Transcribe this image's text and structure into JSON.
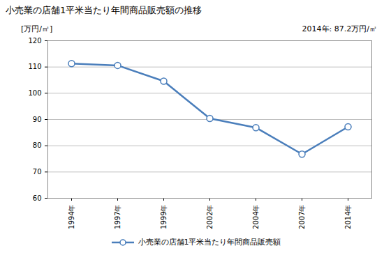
{
  "chart_data": {
    "type": "line",
    "title": "小売業の店舗1平米当たり年間商品販売額の推移",
    "y_label": "[万円/㎡]",
    "annotations": [
      "2014年: 87.2万円/㎡"
    ],
    "categories": [
      "1994年",
      "1997年",
      "1999年",
      "2002年",
      "2004年",
      "2007年",
      "2014年"
    ],
    "series": [
      {
        "name": "小売業の店舗1平米当たり年間商品販売額",
        "color": "#4a7ebb",
        "marker": "circle",
        "values": [
          111.3,
          110.6,
          104.6,
          90.4,
          86.9,
          76.8,
          87.2
        ]
      }
    ],
    "ylim": [
      60,
      120
    ],
    "yticks": [
      60,
      70,
      80,
      90,
      100,
      110,
      120
    ],
    "grid": true,
    "legend": "bottom"
  }
}
